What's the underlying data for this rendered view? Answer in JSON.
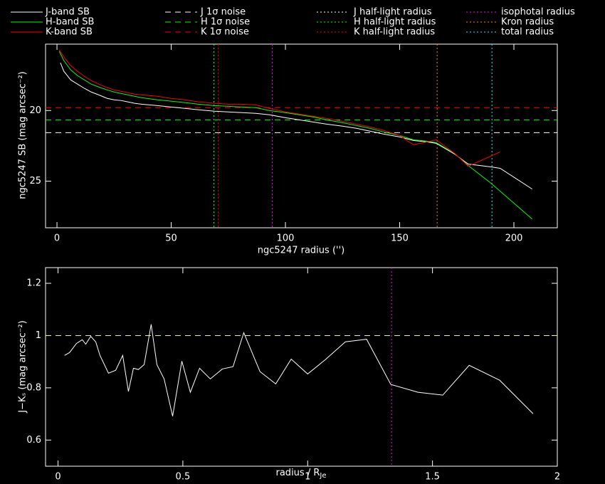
{
  "chart_data": [
    {
      "type": "line",
      "xlabel": "ngc5247 radius ('')",
      "ylabel": "ngc5247 SB (mag arcsec⁻²)",
      "xlim": [
        -5,
        219
      ],
      "ylim": [
        28.3,
        15.3
      ],
      "xticks": [
        0,
        50,
        100,
        150,
        200
      ],
      "yticks": [
        20,
        25
      ],
      "series": [
        {
          "name": "J-band SB",
          "color": "#ffffff",
          "x": [
            1.5,
            3,
            6,
            9,
            12,
            15,
            19,
            22,
            25,
            28,
            31,
            34,
            37,
            44,
            50,
            56,
            62,
            69,
            75,
            81,
            87,
            93,
            100,
            106,
            112,
            118,
            125,
            131,
            137,
            143,
            150,
            156,
            162,
            166,
            174,
            180,
            190,
            194,
            208
          ],
          "values": [
            16.62,
            17.22,
            17.83,
            18.13,
            18.43,
            18.69,
            18.94,
            19.14,
            19.24,
            19.29,
            19.39,
            19.49,
            19.55,
            19.65,
            19.75,
            19.85,
            19.95,
            20.05,
            20.1,
            20.15,
            20.2,
            20.3,
            20.51,
            20.66,
            20.81,
            20.96,
            21.11,
            21.26,
            21.46,
            21.67,
            21.87,
            22.12,
            22.22,
            22.32,
            23.08,
            23.79,
            23.99,
            24.09,
            25.56
          ]
        },
        {
          "name": "H-band SB",
          "color": "#00ff00",
          "x": [
            1,
            3,
            6,
            9,
            12,
            15,
            19,
            22,
            25,
            28,
            31,
            34,
            37,
            44,
            50,
            56,
            62,
            69,
            75,
            81,
            87,
            93,
            100,
            106,
            112,
            118,
            125,
            131,
            137,
            143,
            150,
            156,
            162,
            166,
            174,
            180,
            190,
            208
          ],
          "values": [
            15.81,
            16.46,
            17.12,
            17.53,
            17.83,
            18.13,
            18.38,
            18.54,
            18.69,
            18.79,
            18.89,
            18.99,
            19.09,
            19.24,
            19.34,
            19.44,
            19.55,
            19.65,
            19.7,
            19.75,
            19.8,
            20.0,
            20.15,
            20.3,
            20.45,
            20.66,
            20.86,
            21.06,
            21.26,
            21.52,
            21.77,
            22.07,
            22.17,
            22.27,
            23.03,
            23.89,
            25.15,
            27.68
          ]
        },
        {
          "name": "K-band SB",
          "color": "#ff0000",
          "x": [
            1,
            3,
            6,
            9,
            12,
            15,
            19,
            22,
            25,
            28,
            31,
            34,
            37,
            44,
            50,
            56,
            62,
            69,
            75,
            81,
            87,
            93,
            100,
            106,
            112,
            118,
            125,
            131,
            137,
            143,
            150,
            156,
            162,
            166,
            174,
            180,
            194
          ],
          "values": [
            15.71,
            16.21,
            16.82,
            17.22,
            17.58,
            17.88,
            18.18,
            18.38,
            18.54,
            18.64,
            18.74,
            18.84,
            18.89,
            18.99,
            19.14,
            19.24,
            19.39,
            19.49,
            19.55,
            19.55,
            19.6,
            19.85,
            20.1,
            20.25,
            20.4,
            20.56,
            20.76,
            20.96,
            21.16,
            21.41,
            21.77,
            22.42,
            22.22,
            22.07,
            23.03,
            23.94,
            22.93
          ]
        }
      ],
      "hlines": [
        {
          "name": "J 1σ noise",
          "color": "#ffffff",
          "value": 21.57
        },
        {
          "name": "H 1σ noise",
          "color": "#00ff00",
          "value": 20.66
        },
        {
          "name": "K 1σ noise",
          "color": "#ff0000",
          "value": 19.8
        }
      ],
      "vlines": [
        {
          "name": "J half-light radius",
          "color": "#ffffff",
          "value": 68.7
        },
        {
          "name": "H half-light radius",
          "color": "#00ff00",
          "value": 68.7
        },
        {
          "name": "K half-light radius",
          "color": "#ff0000",
          "value": 70.6
        },
        {
          "name": "isophotal radius",
          "color": "#ff00ff",
          "value": 94.2
        },
        {
          "name": "Kron radius",
          "color": "#ff8000",
          "value": 166.4
        },
        {
          "name": "total radius",
          "color": "#00ffff",
          "value": 190.4
        }
      ]
    },
    {
      "type": "line",
      "xlabel": "radius / R",
      "xlabel_subscript": "Je",
      "ylabel": "J−Kₛ (mag arcsec⁻²)",
      "xlim": [
        -0.05,
        2
      ],
      "ylim": [
        0.5,
        1.26
      ],
      "xticks": [
        0,
        0.5,
        1,
        1.5,
        2
      ],
      "yticks": [
        0.6,
        0.8,
        1,
        1.2
      ],
      "series": [
        {
          "color": "#ffffff",
          "x": [
            0.026,
            0.046,
            0.074,
            0.097,
            0.111,
            0.131,
            0.151,
            0.168,
            0.202,
            0.231,
            0.259,
            0.282,
            0.302,
            0.322,
            0.345,
            0.373,
            0.396,
            0.425,
            0.459,
            0.496,
            0.53,
            0.567,
            0.61,
            0.658,
            0.701,
            0.744,
            0.809,
            0.872,
            0.934,
            1.0,
            1.071,
            1.151,
            1.236,
            1.333,
            1.442,
            1.541,
            1.647,
            1.769,
            1.903
          ],
          "values": [
            0.924,
            0.935,
            0.97,
            0.984,
            0.967,
            0.997,
            0.976,
            0.924,
            0.856,
            0.867,
            0.924,
            0.786,
            0.875,
            0.87,
            0.889,
            1.043,
            0.889,
            0.834,
            0.691,
            0.902,
            0.783,
            0.875,
            0.834,
            0.872,
            0.881,
            1.011,
            0.862,
            0.815,
            0.91,
            0.853,
            0.908,
            0.976,
            0.986,
            0.813,
            0.783,
            0.772,
            0.886,
            0.829,
            0.701
          ]
        }
      ],
      "hlines": [
        {
          "color": "#ffff00",
          "value": 1
        }
      ],
      "vlines": [
        {
          "color": "#ff00ff",
          "value": 1.336
        }
      ]
    }
  ]
}
